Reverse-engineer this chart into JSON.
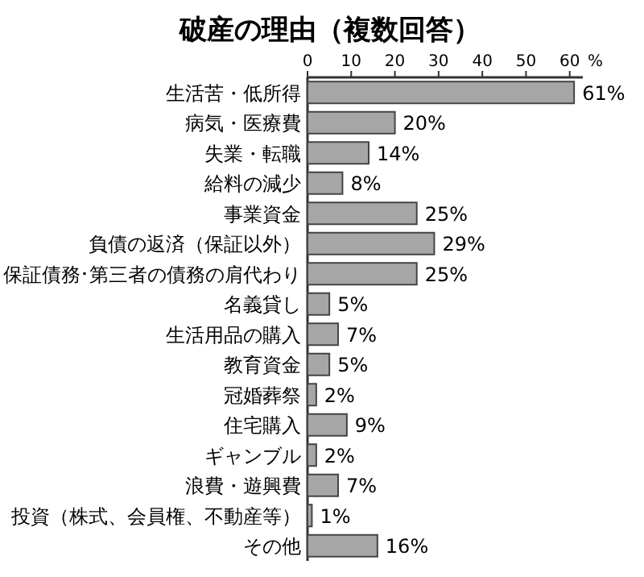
{
  "chart_data": {
    "type": "bar",
    "orientation": "horizontal",
    "title": "破産の理由（複数回答）",
    "xlabel": "%",
    "categories": [
      "生活苦・低所得",
      "病気・医療費",
      "失業・転職",
      "給料の減少",
      "事業資金",
      "負債の返済（保証以外）",
      "保証債務･第三者の債務の肩代わり",
      "名義貸し",
      "生活用品の購入",
      "教育資金",
      "冠婚葬祭",
      "住宅購入",
      "ギャンブル",
      "浪費・遊興費",
      "投資（株式、会員権、不動産等）",
      "その他"
    ],
    "values": [
      61,
      20,
      14,
      8,
      25,
      29,
      25,
      5,
      7,
      5,
      2,
      9,
      2,
      7,
      1,
      16
    ],
    "value_labels": [
      "61%",
      "20%",
      "14%",
      "8%",
      "25%",
      "29%",
      "25%",
      "5%",
      "7%",
      "5%",
      "2%",
      "9%",
      "2%",
      "7%",
      "1%",
      "16%"
    ],
    "color": "#a6a6a6",
    "xlim": [
      0,
      63
    ],
    "xticks": [
      0,
      10,
      20,
      30,
      40,
      50,
      60
    ]
  }
}
